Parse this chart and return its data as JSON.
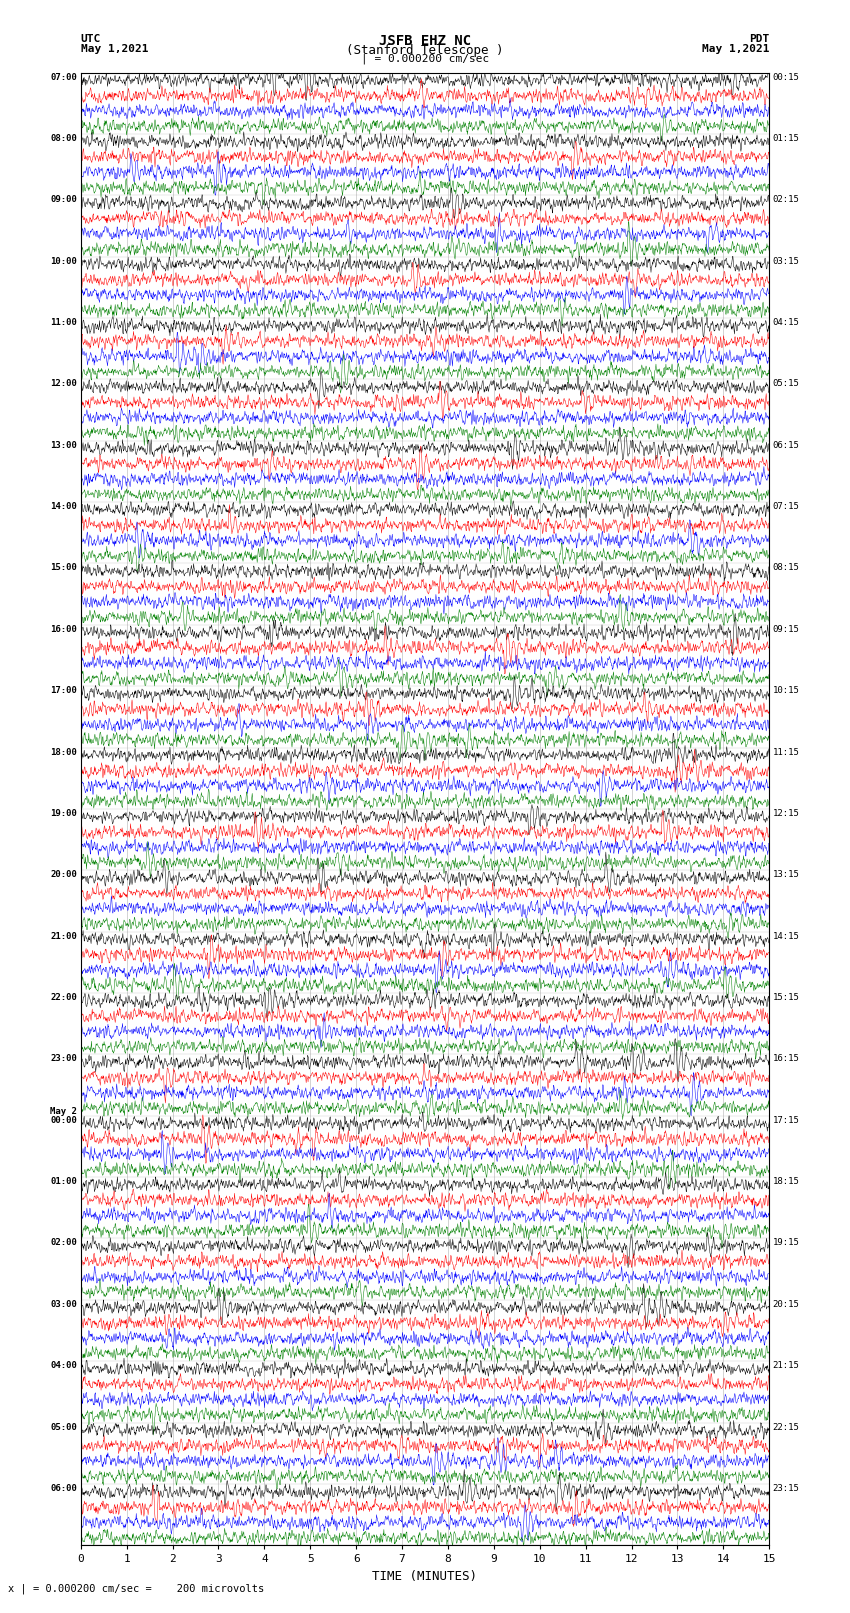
{
  "title_line1": "JSFB EHZ NC",
  "title_line2": "(Stanford Telescope )",
  "title_line3": "| = 0.000200 cm/sec",
  "left_label_top": "UTC",
  "left_label_date": "May 1,2021",
  "right_label_top": "PDT",
  "right_label_date": "May 1,2021",
  "xlabel": "TIME (MINUTES)",
  "bottom_note": "x | = 0.000200 cm/sec =    200 microvolts",
  "colors": [
    "black",
    "red",
    "blue",
    "green"
  ],
  "x_ticks": [
    0,
    1,
    2,
    3,
    4,
    5,
    6,
    7,
    8,
    9,
    10,
    11,
    12,
    13,
    14,
    15
  ],
  "left_times": [
    "07:00",
    "08:00",
    "09:00",
    "10:00",
    "11:00",
    "12:00",
    "13:00",
    "14:00",
    "15:00",
    "16:00",
    "17:00",
    "18:00",
    "19:00",
    "20:00",
    "21:00",
    "22:00",
    "23:00",
    "00:00",
    "01:00",
    "02:00",
    "03:00",
    "04:00",
    "05:00",
    "06:00"
  ],
  "right_times": [
    "00:15",
    "01:15",
    "02:15",
    "03:15",
    "04:15",
    "05:15",
    "06:15",
    "07:15",
    "08:15",
    "09:15",
    "10:15",
    "11:15",
    "12:15",
    "13:15",
    "14:15",
    "15:15",
    "16:15",
    "17:15",
    "18:15",
    "19:15",
    "20:15",
    "21:15",
    "22:15",
    "23:15"
  ],
  "may2_group_idx": 17,
  "bg_color": "white",
  "fig_width": 8.5,
  "fig_height": 16.13,
  "dpi": 100
}
